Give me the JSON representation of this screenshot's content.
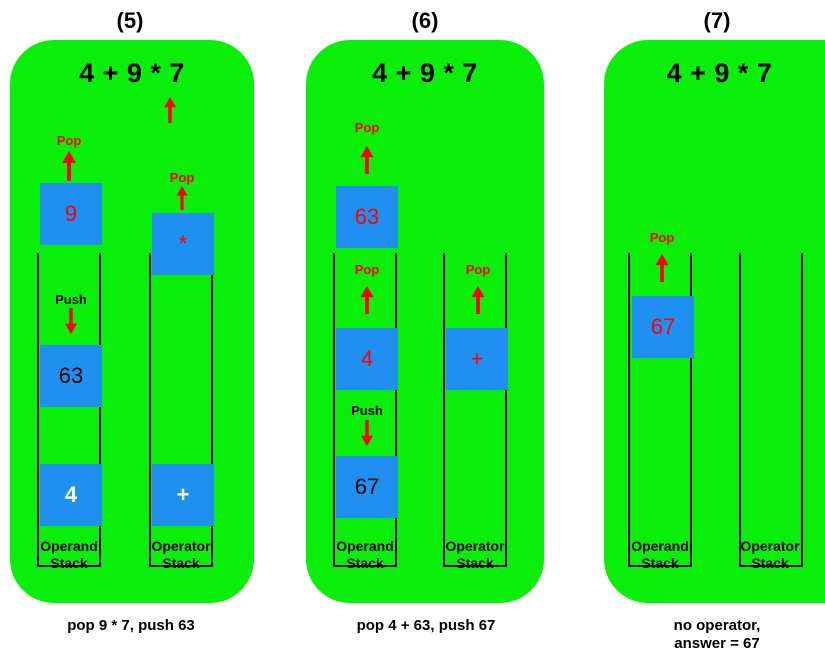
{
  "colors": {
    "panel": "#0aef0a",
    "block": "#1f8ff0",
    "arrow": "#ff0000"
  },
  "labels": {
    "pop": "Pop",
    "push": "Push"
  },
  "stack_labels": {
    "operand_line1": "Operand",
    "operand_line2": "Stack",
    "operator_line1": "Operator",
    "operator_line2": "Stack"
  },
  "steps": [
    {
      "title": "(5)",
      "expression": "4 + 9 * 7",
      "blocks": {
        "popped_operand": "9",
        "popped_operator": "*",
        "pushed": "63",
        "bottom_operand": "4",
        "bottom_operator": "+"
      },
      "caption": "pop 9 * 7, push 63"
    },
    {
      "title": "(6)",
      "expression": "4 + 9 * 7",
      "blocks": {
        "popped_result": "63",
        "popped_operand": "4",
        "popped_operator": "+",
        "pushed": "67"
      },
      "caption": "pop 4 + 63, push 67"
    },
    {
      "title": "(7)",
      "expression": "4 + 9 * 7",
      "blocks": {
        "popped_answer": "67"
      },
      "caption_line1": "no operator,",
      "caption_line2": "answer = 67"
    }
  ]
}
